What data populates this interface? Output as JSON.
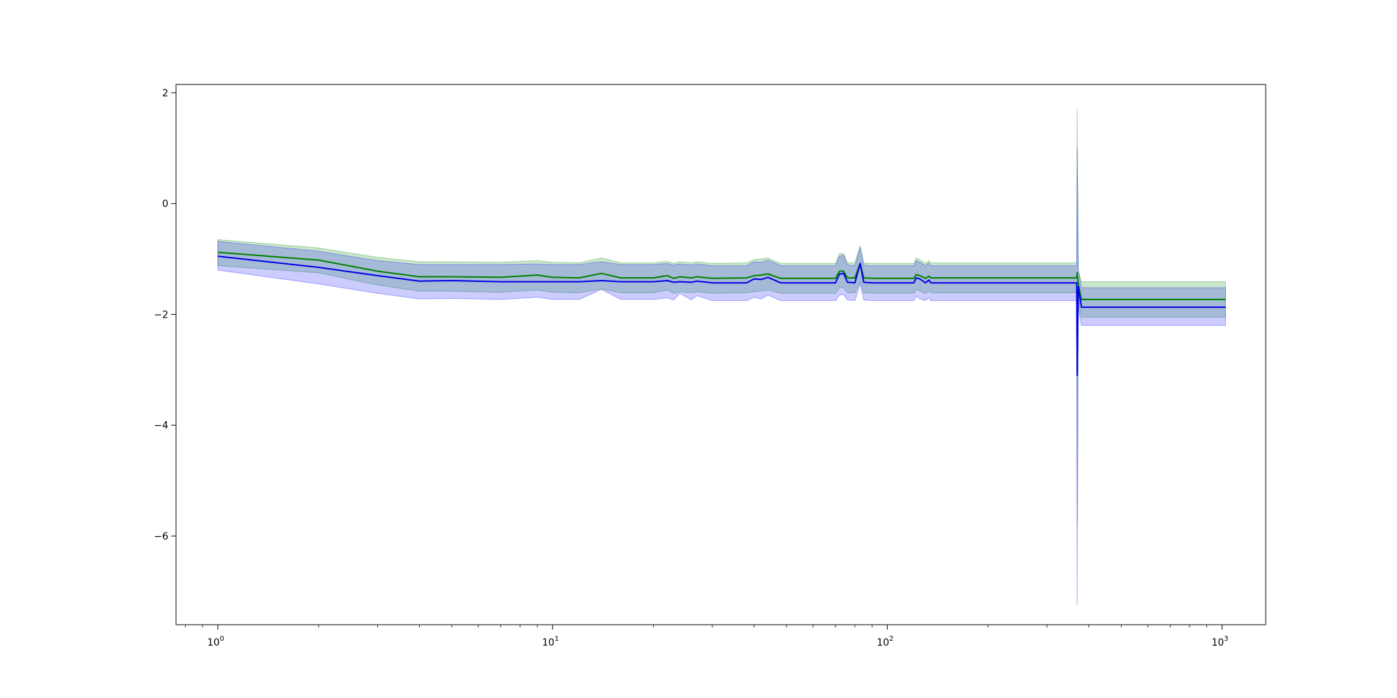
{
  "chart_data": {
    "type": "line",
    "title": "",
    "xlabel": "",
    "ylabel": "",
    "xscale": "log",
    "xlim": [
      0.75,
      1350
    ],
    "ylim": [
      -7.6,
      2.15
    ],
    "grid": false,
    "x_ticks": [
      {
        "value": 1,
        "base": "10",
        "exp": "0"
      },
      {
        "value": 10,
        "base": "10",
        "exp": "1"
      },
      {
        "value": 100,
        "base": "10",
        "exp": "2"
      },
      {
        "value": 1000,
        "base": "10",
        "exp": "3"
      }
    ],
    "y_ticks": [
      {
        "value": 2,
        "label": "2"
      },
      {
        "value": 0,
        "label": "0"
      },
      {
        "value": -2,
        "label": "−2"
      },
      {
        "value": -4,
        "label": "−4"
      },
      {
        "value": -6,
        "label": "−6"
      }
    ],
    "series": [
      {
        "color": "#008000",
        "band_color": "#2ca02c",
        "x": [
          1,
          2,
          3,
          4,
          5,
          7,
          9,
          10,
          12,
          14,
          16,
          20,
          22,
          23,
          24,
          26,
          27,
          30,
          38,
          40,
          42,
          44,
          48,
          70,
          72,
          74,
          76,
          80,
          83,
          85,
          90,
          120,
          122,
          125,
          130,
          133,
          135,
          140,
          200,
          300,
          368,
          369,
          372,
          380,
          500,
          1000,
          1024
        ],
        "y": [
          -0.88,
          -1.02,
          -1.22,
          -1.32,
          -1.32,
          -1.33,
          -1.29,
          -1.33,
          -1.34,
          -1.26,
          -1.34,
          -1.34,
          -1.3,
          -1.35,
          -1.32,
          -1.34,
          -1.32,
          -1.35,
          -1.34,
          -1.3,
          -1.29,
          -1.27,
          -1.35,
          -1.35,
          -1.22,
          -1.22,
          -1.34,
          -1.34,
          -1.08,
          -1.34,
          -1.35,
          -1.35,
          -1.28,
          -1.3,
          -1.35,
          -1.31,
          -1.34,
          -1.34,
          -1.34,
          -1.34,
          -1.34,
          -1.25,
          -1.45,
          -1.73,
          -1.73,
          -1.73,
          -1.73
        ],
        "upper": [
          -0.65,
          -0.8,
          -0.97,
          -1.05,
          -1.05,
          -1.06,
          -1.03,
          -1.06,
          -1.07,
          -0.98,
          -1.07,
          -1.07,
          -1.04,
          -1.08,
          -1.05,
          -1.07,
          -1.05,
          -1.08,
          -1.07,
          -1.01,
          -1.0,
          -0.98,
          -1.08,
          -1.08,
          -0.9,
          -0.9,
          -1.07,
          -1.07,
          -0.76,
          -1.07,
          -1.08,
          -1.08,
          -0.98,
          -1.01,
          -1.08,
          -1.03,
          -1.07,
          -1.07,
          -1.07,
          -1.07,
          -1.07,
          1.7,
          -1.2,
          -1.41,
          -1.41,
          -1.41,
          -1.41
        ],
        "lower": [
          -1.12,
          -1.25,
          -1.47,
          -1.58,
          -1.58,
          -1.6,
          -1.56,
          -1.6,
          -1.61,
          -1.54,
          -1.61,
          -1.61,
          -1.56,
          -1.62,
          -1.59,
          -1.61,
          -1.59,
          -1.62,
          -1.61,
          -1.59,
          -1.58,
          -1.56,
          -1.62,
          -1.62,
          -1.52,
          -1.52,
          -1.61,
          -1.61,
          -1.4,
          -1.61,
          -1.62,
          -1.62,
          -1.55,
          -1.58,
          -1.62,
          -1.58,
          -1.61,
          -1.61,
          -1.61,
          -1.61,
          -1.61,
          -5.75,
          -1.7,
          -2.05,
          -2.05,
          -2.05,
          -2.05
        ]
      },
      {
        "color": "#0000e6",
        "band_color": "#3333ff",
        "x": [
          1,
          2,
          3,
          4,
          5,
          7,
          9,
          10,
          12,
          14,
          16,
          20,
          22,
          23,
          24,
          26,
          27,
          30,
          38,
          40,
          42,
          44,
          48,
          70,
          72,
          74,
          76,
          80,
          83,
          85,
          90,
          120,
          122,
          125,
          130,
          133,
          135,
          140,
          200,
          300,
          368,
          369,
          372,
          380,
          500,
          1000,
          1024
        ],
        "y": [
          -0.95,
          -1.15,
          -1.3,
          -1.4,
          -1.39,
          -1.41,
          -1.41,
          -1.41,
          -1.41,
          -1.39,
          -1.41,
          -1.41,
          -1.39,
          -1.42,
          -1.41,
          -1.42,
          -1.4,
          -1.43,
          -1.43,
          -1.36,
          -1.37,
          -1.33,
          -1.43,
          -1.43,
          -1.27,
          -1.26,
          -1.42,
          -1.43,
          -1.08,
          -1.42,
          -1.43,
          -1.43,
          -1.34,
          -1.36,
          -1.43,
          -1.38,
          -1.43,
          -1.43,
          -1.43,
          -1.43,
          -1.43,
          -3.1,
          -1.5,
          -1.87,
          -1.87,
          -1.87,
          -1.87
        ],
        "upper": [
          -0.68,
          -0.86,
          -1.03,
          -1.1,
          -1.1,
          -1.1,
          -1.09,
          -1.1,
          -1.1,
          -1.05,
          -1.1,
          -1.1,
          -1.08,
          -1.11,
          -1.09,
          -1.11,
          -1.09,
          -1.12,
          -1.12,
          -1.05,
          -1.06,
          -1.02,
          -1.12,
          -1.12,
          -0.95,
          -0.93,
          -1.11,
          -1.12,
          -0.8,
          -1.11,
          -1.12,
          -1.12,
          -1.03,
          -1.06,
          -1.12,
          -1.07,
          -1.12,
          -1.12,
          -1.12,
          -1.12,
          -1.12,
          1.0,
          -1.2,
          -1.52,
          -1.52,
          -1.52,
          -1.52
        ],
        "lower": [
          -1.2,
          -1.45,
          -1.62,
          -1.72,
          -1.71,
          -1.73,
          -1.69,
          -1.73,
          -1.73,
          -1.55,
          -1.73,
          -1.73,
          -1.7,
          -1.74,
          -1.62,
          -1.74,
          -1.66,
          -1.75,
          -1.75,
          -1.69,
          -1.72,
          -1.65,
          -1.75,
          -1.75,
          -1.65,
          -1.64,
          -1.74,
          -1.75,
          -1.45,
          -1.74,
          -1.75,
          -1.75,
          -1.67,
          -1.72,
          -1.75,
          -1.7,
          -1.75,
          -1.75,
          -1.75,
          -1.75,
          -1.75,
          -7.25,
          -1.85,
          -2.2,
          -2.2,
          -2.2,
          -2.2
        ]
      }
    ]
  }
}
